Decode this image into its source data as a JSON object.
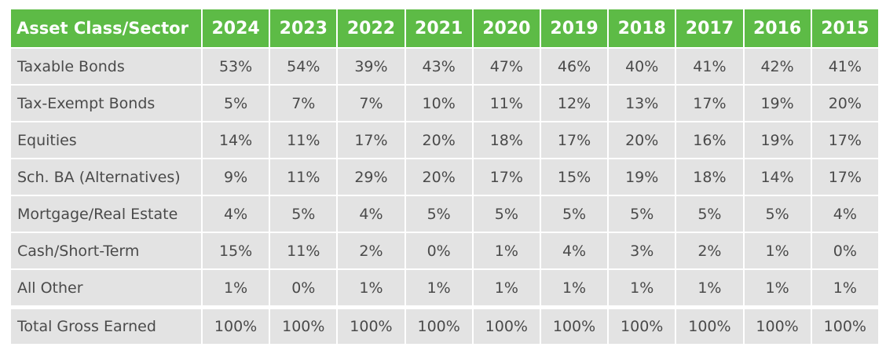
{
  "table": {
    "headers": [
      "Asset Class/Sector",
      "2024",
      "2023",
      "2022",
      "2021",
      "2020",
      "2019",
      "2018",
      "2017",
      "2016",
      "2015"
    ],
    "rows": [
      {
        "label": "Taxable Bonds",
        "values": [
          "53%",
          "54%",
          "39%",
          "43%",
          "47%",
          "46%",
          "40%",
          "41%",
          "42%",
          "41%"
        ]
      },
      {
        "label": "Tax-Exempt Bonds",
        "values": [
          "5%",
          "7%",
          "7%",
          "10%",
          "11%",
          "12%",
          "13%",
          "17%",
          "19%",
          "20%"
        ]
      },
      {
        "label": "Equities",
        "values": [
          "14%",
          "11%",
          "17%",
          "20%",
          "18%",
          "17%",
          "20%",
          "16%",
          "19%",
          "17%"
        ]
      },
      {
        "label": "Sch. BA (Alternatives)",
        "values": [
          "9%",
          "11%",
          "29%",
          "20%",
          "17%",
          "15%",
          "19%",
          "18%",
          "14%",
          "17%"
        ]
      },
      {
        "label": "Mortgage/Real Estate",
        "values": [
          "4%",
          "5%",
          "4%",
          "5%",
          "5%",
          "5%",
          "5%",
          "5%",
          "5%",
          "4%"
        ]
      },
      {
        "label": "Cash/Short-Term",
        "values": [
          "15%",
          "11%",
          "2%",
          "0%",
          "1%",
          "4%",
          "3%",
          "2%",
          "1%",
          "0%"
        ]
      },
      {
        "label": "All Other",
        "values": [
          "1%",
          "0%",
          "1%",
          "1%",
          "1%",
          "1%",
          "1%",
          "1%",
          "1%",
          "1%"
        ]
      }
    ],
    "total": {
      "label": "Total Gross Earned",
      "values": [
        "100%",
        "100%",
        "100%",
        "100%",
        "100%",
        "100%",
        "100%",
        "100%",
        "100%",
        "100%"
      ]
    }
  }
}
